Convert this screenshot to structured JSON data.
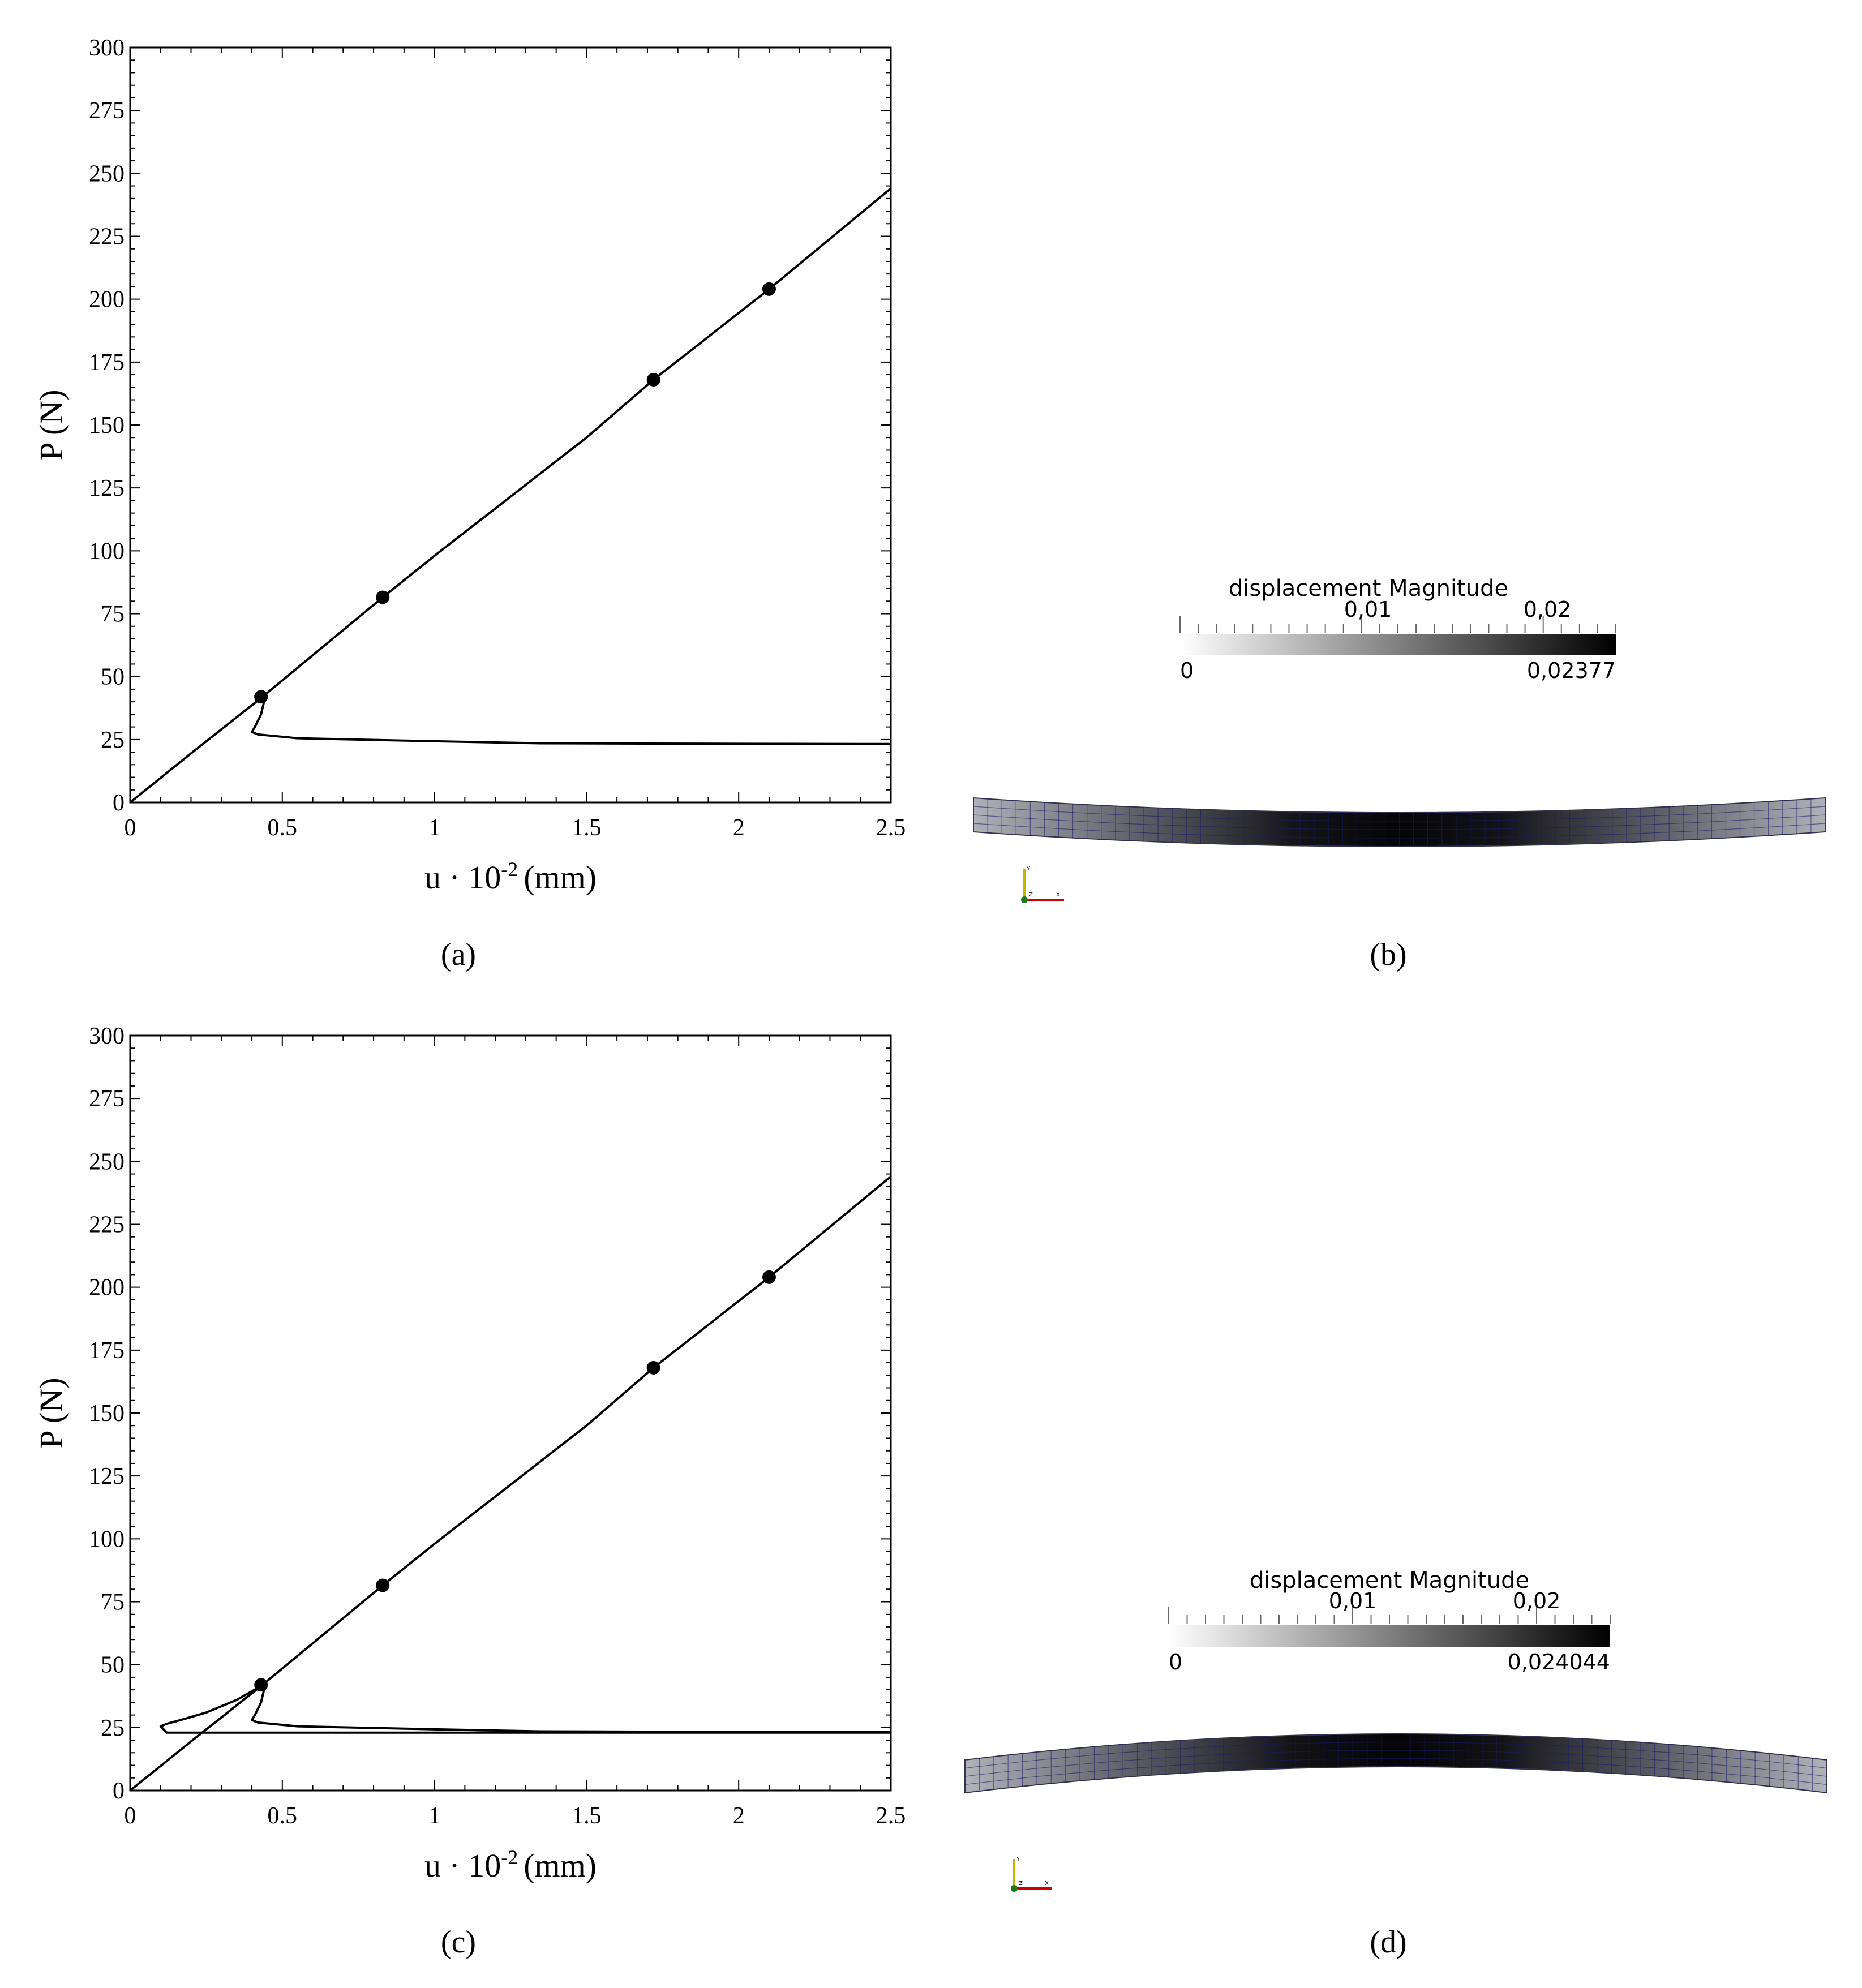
{
  "chart_data": [
    {
      "panel": "(a)",
      "type": "line",
      "xlabel": "u · 10^-2 (mm)",
      "xlabel_base": "u",
      "xlabel_mid": "10",
      "xlabel_sup": "-2",
      "xlabel_unit": "(mm)",
      "ylabel": "P (N)",
      "xlim": [
        0,
        2.5
      ],
      "ylim": [
        0,
        300
      ],
      "xticks": [
        "0",
        "0.5",
        "1",
        "1.5",
        "2",
        "2.5"
      ],
      "yticks": [
        "0",
        "25",
        "50",
        "75",
        "100",
        "125",
        "150",
        "175",
        "200",
        "225",
        "250",
        "275",
        "300"
      ],
      "series": [
        {
          "x": [
            0,
            0.2,
            0.43,
            0.44,
            0.43,
            0.41,
            0.4,
            0.42,
            0.55,
            1.0,
            1.35,
            2.0,
            2.5
          ],
          "y": [
            0,
            19.5,
            41.5,
            40,
            35,
            30,
            28,
            27,
            25.5,
            24.3,
            23.5,
            23.3,
            23.2
          ]
        },
        {
          "x": [
            0.43,
            0.83,
            1.0,
            1.5,
            1.72,
            2.1,
            2.5
          ],
          "y": [
            41.5,
            81.5,
            98,
            145,
            168,
            204,
            244
          ]
        }
      ],
      "markers": {
        "x": [
          0.43,
          0.83,
          1.72,
          2.1
        ],
        "y": [
          42,
          81.5,
          168,
          204
        ]
      }
    },
    {
      "panel": "(c)",
      "type": "line",
      "xlabel": "u · 10^-2 (mm)",
      "xlabel_base": "u",
      "xlabel_mid": "10",
      "xlabel_sup": "-2",
      "xlabel_unit": "(mm)",
      "ylabel": "P (N)",
      "xlim": [
        0,
        2.5
      ],
      "ylim": [
        0,
        300
      ],
      "xticks": [
        "0",
        "0.5",
        "1",
        "1.5",
        "2",
        "2.5"
      ],
      "yticks": [
        "0",
        "25",
        "50",
        "75",
        "100",
        "125",
        "150",
        "175",
        "200",
        "225",
        "250",
        "275",
        "300"
      ],
      "series": [
        {
          "x": [
            0,
            0.2,
            0.43,
            0.44,
            0.43,
            0.41,
            0.4,
            0.42,
            0.55,
            1.0,
            1.35,
            2.0,
            2.5
          ],
          "y": [
            0,
            19.5,
            41.5,
            40,
            35,
            30,
            28,
            27,
            25.5,
            24.3,
            23.5,
            23.3,
            23.2
          ]
        },
        {
          "x": [
            0.43,
            0.83,
            1.0,
            1.5,
            1.72,
            2.1,
            2.5
          ],
          "y": [
            41.5,
            81.5,
            98,
            145,
            168,
            204,
            244
          ]
        },
        {
          "x": [
            0.43,
            0.35,
            0.25,
            0.18,
            0.12,
            0.1,
            0.12,
            0.5,
            1.0,
            2.5
          ],
          "y": [
            41.5,
            36,
            31,
            28.5,
            26.5,
            25.5,
            23,
            23,
            23,
            23
          ]
        }
      ],
      "markers": {
        "x": [
          0.43,
          0.83,
          1.72,
          2.1
        ],
        "y": [
          42,
          81.5,
          168,
          204
        ]
      }
    }
  ],
  "panels": {
    "a": {
      "label": "(a)"
    },
    "b": {
      "label": "(b)",
      "colorbar_title": "displacement Magnitude",
      "colorbar_ticks": [
        "0,01",
        "0,02"
      ],
      "colorbar_min": "0",
      "colorbar_max": "0,02377",
      "orientation_x": "X",
      "orientation_y": "Y",
      "orientation_z": "Z"
    },
    "c": {
      "label": "(c)"
    },
    "d": {
      "label": "(d)",
      "colorbar_title": "displacement Magnitude",
      "colorbar_ticks": [
        "0,01",
        "0,02"
      ],
      "colorbar_min": "0",
      "colorbar_max": "0,024044",
      "orientation_x": "X",
      "orientation_y": "Y",
      "orientation_z": "Z"
    }
  },
  "colors": {
    "line": "#000000",
    "mesh_lines": "#1a1a6e",
    "axis_x": "#cc0000",
    "axis_y": "#c8b400",
    "axis_z": "#1a7a1a"
  }
}
